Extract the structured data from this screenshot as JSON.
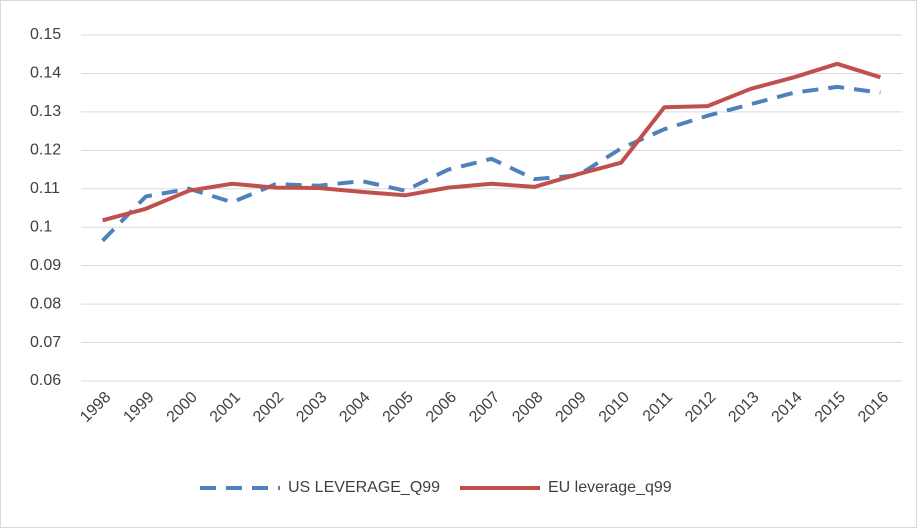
{
  "chart_data": {
    "type": "line",
    "categories": [
      "1998",
      "1999",
      "2000",
      "2001",
      "2002",
      "2003",
      "2004",
      "2005",
      "2006",
      "2007",
      "2008",
      "2009",
      "2010",
      "2011",
      "2012",
      "2013",
      "2014",
      "2015",
      "2016"
    ],
    "series": [
      {
        "name": "US LEVERAGE_Q99",
        "color": "#4f81bd",
        "dashed": true,
        "values": [
          0.0965,
          0.108,
          0.11,
          0.1065,
          0.1112,
          0.1108,
          0.112,
          0.1095,
          0.115,
          0.1178,
          0.1125,
          0.1135,
          0.1205,
          0.1255,
          0.129,
          0.132,
          0.135,
          0.1365,
          0.135
        ]
      },
      {
        "name": "EU leverage_q99",
        "color": "#c0504d",
        "dashed": false,
        "values": [
          0.1018,
          0.1048,
          0.1095,
          0.1113,
          0.1103,
          0.1102,
          0.1092,
          0.1083,
          0.1103,
          0.1113,
          0.1105,
          0.1138,
          0.1168,
          0.1312,
          0.1315,
          0.136,
          0.139,
          0.1425,
          0.139
        ]
      }
    ],
    "ylim": [
      0.06,
      0.15
    ],
    "yticks": [
      0.06,
      0.07,
      0.08,
      0.09,
      0.1,
      0.11,
      0.12,
      0.13,
      0.14,
      0.15
    ],
    "grid": true,
    "legend": "bottom"
  }
}
